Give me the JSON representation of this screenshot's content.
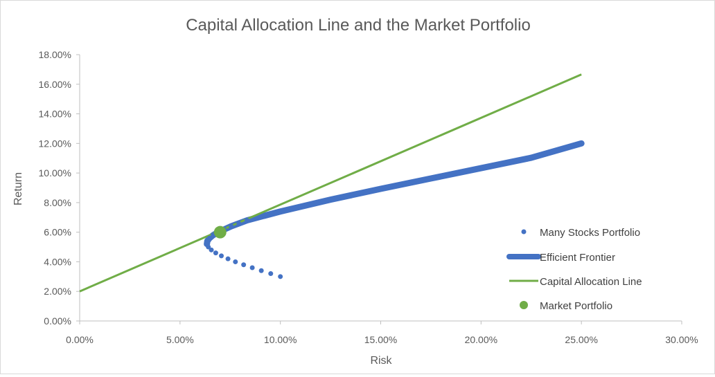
{
  "chart_data": {
    "type": "scatter",
    "title": "Capital Allocation Line and the Market Portfolio",
    "xlabel": "Risk",
    "ylabel": "Return",
    "xlim": [
      0,
      0.3
    ],
    "ylim": [
      0,
      0.18
    ],
    "x_ticks": [
      "0.00%",
      "5.00%",
      "10.00%",
      "15.00%",
      "20.00%",
      "25.00%",
      "30.00%"
    ],
    "y_ticks": [
      "0.00%",
      "2.00%",
      "4.00%",
      "6.00%",
      "8.00%",
      "10.00%",
      "12.00%",
      "14.00%",
      "16.00%",
      "18.00%"
    ],
    "grid": false,
    "legend_position": "right",
    "series": [
      {
        "name": "Many Stocks Portfolio",
        "kind": "scatter",
        "color": "#4472c4",
        "points": [
          [
            0.1,
            0.03
          ],
          [
            0.0952,
            0.032
          ],
          [
            0.0905,
            0.034
          ],
          [
            0.086,
            0.036
          ],
          [
            0.0817,
            0.038
          ],
          [
            0.0776,
            0.04
          ],
          [
            0.0739,
            0.042
          ],
          [
            0.0706,
            0.044
          ],
          [
            0.0678,
            0.046
          ],
          [
            0.0656,
            0.048
          ],
          [
            0.0641,
            0.05
          ],
          [
            0.0634,
            0.052
          ],
          [
            0.0636,
            0.054
          ],
          [
            0.0647,
            0.056
          ],
          [
            0.0665,
            0.058
          ],
          [
            0.069,
            0.06
          ],
          [
            0.072,
            0.062
          ],
          [
            0.0755,
            0.064
          ],
          [
            0.0793,
            0.066
          ],
          [
            0.0834,
            0.068
          ]
        ]
      },
      {
        "name": "Efficient Frontier",
        "kind": "line",
        "color": "#4472c4",
        "points": [
          [
            0.0634,
            0.052
          ],
          [
            0.0636,
            0.054
          ],
          [
            0.0647,
            0.056
          ],
          [
            0.0665,
            0.058
          ],
          [
            0.069,
            0.06
          ],
          [
            0.0755,
            0.064
          ],
          [
            0.0834,
            0.068
          ],
          [
            0.1,
            0.074
          ],
          [
            0.125,
            0.082
          ],
          [
            0.15,
            0.0893
          ],
          [
            0.175,
            0.0963
          ],
          [
            0.2,
            0.1033
          ],
          [
            0.225,
            0.1103
          ],
          [
            0.25,
            0.12
          ]
        ]
      },
      {
        "name": "Capital Allocation Line",
        "kind": "line",
        "color": "#70ad47",
        "points": [
          [
            0.0,
            0.02
          ],
          [
            0.25,
            0.1666
          ]
        ]
      },
      {
        "name": "Market Portfolio",
        "kind": "marker",
        "color": "#70ad47",
        "points": [
          [
            0.07,
            0.06
          ]
        ]
      }
    ]
  }
}
